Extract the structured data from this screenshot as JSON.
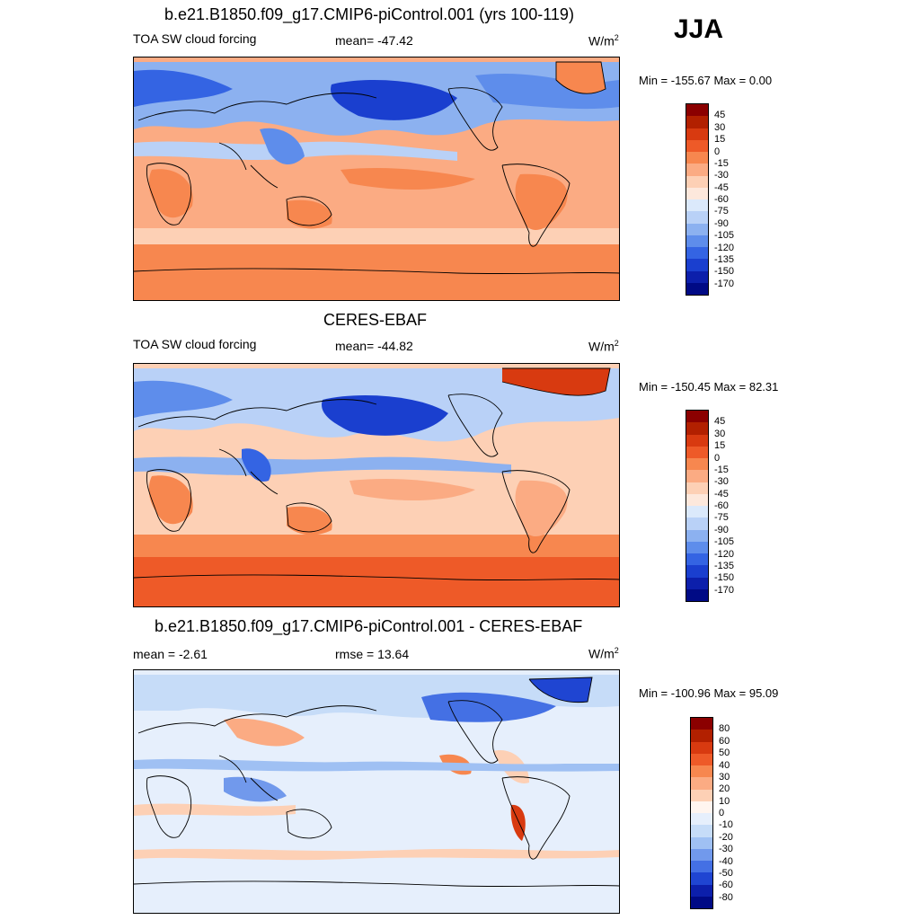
{
  "season": "JJA",
  "units": "W/m",
  "units_sup": "2",
  "panels": [
    {
      "title": "b.e21.B1850.f09_g17.CMIP6-piControl.001 (yrs 100-119)",
      "left_label": "TOA SW cloud forcing",
      "center_label": "mean= -47.42",
      "minmax": "Min = -155.67 Max =    0.00",
      "colorbar": {
        "labels": [
          "45",
          "30",
          "15",
          "0",
          "-15",
          "-30",
          "-45",
          "-60",
          "-75",
          "-90",
          "-105",
          "-120",
          "-135",
          "-150",
          "-170"
        ],
        "colors": [
          "#8b0000",
          "#b22000",
          "#d83a10",
          "#ee5a28",
          "#f7874f",
          "#fbab83",
          "#fdd0b5",
          "#fde8dc",
          "#dbe9fb",
          "#b9d1f7",
          "#8cb1f0",
          "#5e8deb",
          "#3464e3",
          "#1a3fcf",
          "#0c1fab",
          "#000a85"
        ]
      }
    },
    {
      "title": "CERES-EBAF",
      "left_label": "TOA SW cloud forcing",
      "center_label": "mean= -44.82",
      "minmax": "Min = -150.45 Max =  82.31",
      "colorbar": {
        "labels": [
          "45",
          "30",
          "15",
          "0",
          "-15",
          "-30",
          "-45",
          "-60",
          "-75",
          "-90",
          "-105",
          "-120",
          "-135",
          "-150",
          "-170"
        ],
        "colors": [
          "#8b0000",
          "#b22000",
          "#d83a10",
          "#ee5a28",
          "#f7874f",
          "#fbab83",
          "#fdd0b5",
          "#fde8dc",
          "#dbe9fb",
          "#b9d1f7",
          "#8cb1f0",
          "#5e8deb",
          "#3464e3",
          "#1a3fcf",
          "#0c1fab",
          "#000a85"
        ]
      }
    },
    {
      "title": "b.e21.B1850.f09_g17.CMIP6-piControl.001 - CERES-EBAF",
      "left_label": "mean =  -2.61",
      "center_label": "rmse =  13.64",
      "minmax": "Min = -100.96 Max =  95.09",
      "colorbar": {
        "labels": [
          "80",
          "60",
          "50",
          "40",
          "30",
          "20",
          "10",
          "0",
          "-10",
          "-20",
          "-30",
          "-40",
          "-50",
          "-60",
          "-80"
        ],
        "colors": [
          "#8b0000",
          "#b22000",
          "#d83a10",
          "#ee5a28",
          "#f7874f",
          "#fbab83",
          "#fdd0b5",
          "#fff5ef",
          "#e6effc",
          "#c6dcf8",
          "#9fc0f3",
          "#7199ec",
          "#4470e4",
          "#1f45d2",
          "#0c1fab",
          "#000a85"
        ]
      }
    }
  ]
}
